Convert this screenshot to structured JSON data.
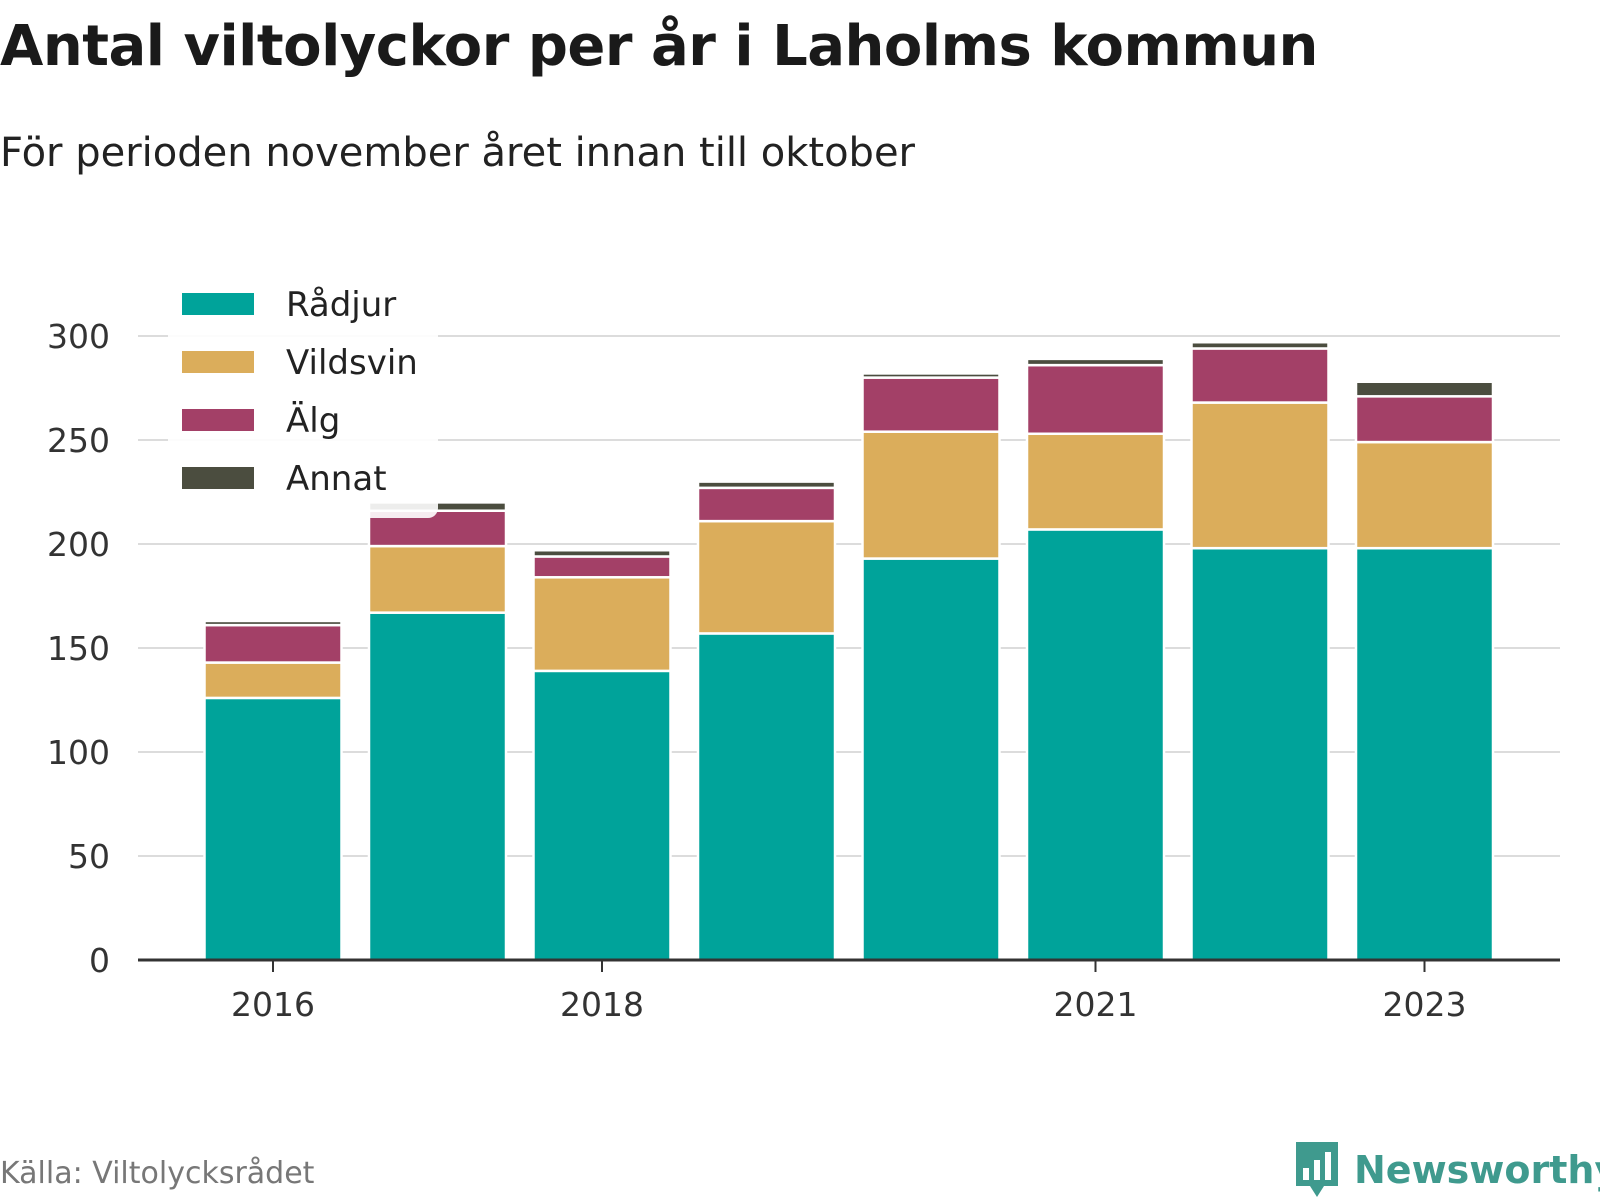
{
  "header": {
    "title": "Antal viltolyckor per år i Laholms kommun",
    "subtitle": "För perioden november året innan till oktober"
  },
  "footer": {
    "source": "Källa: Viltolycksrådet",
    "brand": "Newsworthy",
    "brand_icon": "bar-chart-speech-bubble-icon"
  },
  "chart_data": {
    "type": "bar",
    "stacked": true,
    "categories": [
      "2016",
      "2017",
      "2018",
      "2019",
      "2020",
      "2021",
      "2022",
      "2023"
    ],
    "x_tick_labels": [
      "2016",
      "",
      "2018",
      "",
      "",
      "2021",
      "",
      "2023"
    ],
    "series": [
      {
        "name": "Rådjur",
        "color": "#00a39a",
        "values": [
          126,
          167,
          139,
          157,
          193,
          207,
          198,
          198
        ]
      },
      {
        "name": "Vildsvin",
        "color": "#dbad5b",
        "values": [
          17,
          32,
          45,
          54,
          61,
          46,
          70,
          51
        ]
      },
      {
        "name": "Älg",
        "color": "#a34067",
        "values": [
          18,
          17,
          10,
          16,
          26,
          33,
          26,
          22
        ]
      },
      {
        "name": "Annat",
        "color": "#4b4d3f",
        "values": [
          2,
          4,
          3,
          3,
          2,
          3,
          3,
          7
        ]
      }
    ],
    "ylim": [
      0,
      300
    ],
    "y_ticks": [
      0,
      50,
      100,
      150,
      200,
      250,
      300
    ],
    "xlabel": "",
    "ylabel": "",
    "grid": true,
    "legend_position": "top-left"
  }
}
